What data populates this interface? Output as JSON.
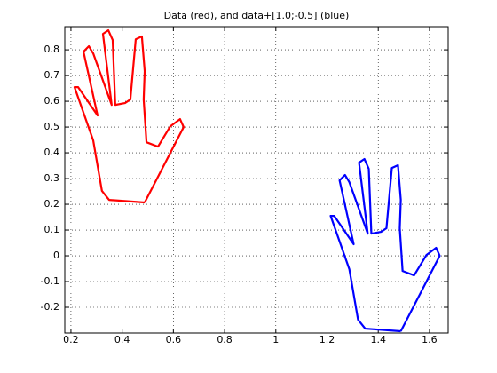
{
  "chart_data": {
    "type": "line",
    "title": "Data (red), and data+[1.0;-0.5] (blue)",
    "xlim": [
      0.176,
      1.673
    ],
    "ylim": [
      -0.3,
      0.89
    ],
    "xticks": [
      0.2,
      0.4,
      0.6,
      0.8,
      1,
      1.2,
      1.4,
      1.6
    ],
    "yticks": [
      -0.2,
      -0.1,
      0,
      0.1,
      0.2,
      0.3,
      0.4,
      0.5,
      0.6,
      0.7,
      0.8
    ],
    "grid": true,
    "series": [
      {
        "color": "#ff0000",
        "x": [
          0.488,
          0.349,
          0.321,
          0.287,
          0.214,
          0.228,
          0.304,
          0.249,
          0.27,
          0.287,
          0.359,
          0.325,
          0.346,
          0.363,
          0.373,
          0.411,
          0.432,
          0.453,
          0.477,
          0.488,
          0.484,
          0.495,
          0.54,
          0.588,
          0.626,
          0.64,
          0.488
        ],
        "values": [
          0.207,
          0.217,
          0.252,
          0.448,
          0.655,
          0.655,
          0.545,
          0.793,
          0.814,
          0.786,
          0.586,
          0.862,
          0.876,
          0.838,
          0.586,
          0.593,
          0.607,
          0.841,
          0.852,
          0.717,
          0.607,
          0.441,
          0.424,
          0.503,
          0.531,
          0.5,
          0.207
        ]
      },
      {
        "color": "#0000ff",
        "x": [
          1.488,
          1.349,
          1.321,
          1.287,
          1.214,
          1.228,
          1.304,
          1.249,
          1.27,
          1.287,
          1.359,
          1.325,
          1.346,
          1.363,
          1.373,
          1.411,
          1.432,
          1.453,
          1.477,
          1.488,
          1.484,
          1.495,
          1.54,
          1.588,
          1.626,
          1.64,
          1.488
        ],
        "values": [
          -0.293,
          -0.283,
          -0.248,
          -0.052,
          0.155,
          0.155,
          0.045,
          0.293,
          0.314,
          0.286,
          0.086,
          0.362,
          0.376,
          0.338,
          0.086,
          0.093,
          0.107,
          0.341,
          0.352,
          0.217,
          0.107,
          -0.059,
          -0.076,
          0.003,
          0.031,
          0.0,
          -0.293
        ]
      }
    ]
  }
}
